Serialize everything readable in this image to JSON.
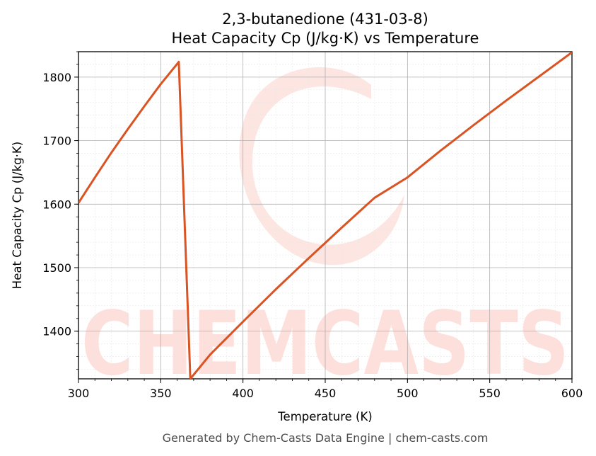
{
  "chart_data": {
    "type": "line",
    "title": "2,3-butanedione (431-03-8)",
    "subtitle": "Heat Capacity Cp (J/kg·K) vs Temperature",
    "xlabel": "Temperature (K)",
    "ylabel": "Heat Capacity Cp (J/kg·K)",
    "xlim": [
      300,
      600
    ],
    "ylim": [
      1325,
      1840
    ],
    "xticks": [
      300,
      350,
      400,
      450,
      500,
      550,
      600
    ],
    "yticks": [
      1400,
      1500,
      1600,
      1700,
      1800
    ],
    "grid": true,
    "line_color": "#d95323",
    "series": [
      {
        "x": [
          300,
          310,
          320,
          330,
          340,
          350,
          361,
          368,
          380,
          400,
          420,
          440,
          460,
          480,
          500,
          520,
          540,
          560,
          580,
          600
        ],
        "y": [
          1602,
          1642,
          1681,
          1718,
          1754,
          1789,
          1824,
          1325,
          1363,
          1415,
          1466,
          1515,
          1563,
          1610,
          1642,
          1684,
          1724,
          1763,
          1801,
          1839
        ]
      }
    ]
  },
  "watermark": "CHEMCASTS",
  "footer": "Generated by Chem-Casts Data Engine | chem-casts.com"
}
